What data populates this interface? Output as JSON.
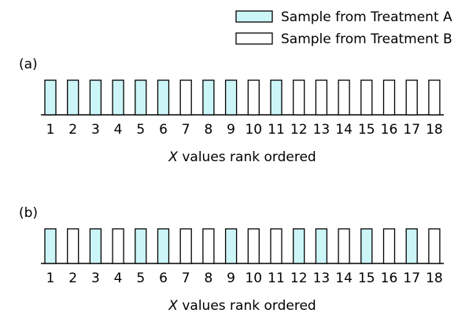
{
  "legend": [
    {
      "label": "Sample from Treatment A",
      "treatment": "A",
      "color": "#ccf5f7"
    },
    {
      "label": "Sample from Treatment B",
      "treatment": "B",
      "color": "#ffffff"
    }
  ],
  "panels": [
    {
      "label": "(a)",
      "ranks": [
        1,
        2,
        3,
        4,
        5,
        6,
        7,
        8,
        9,
        10,
        11,
        12,
        13,
        14,
        15,
        16,
        17,
        18
      ],
      "treatments": [
        "A",
        "A",
        "A",
        "A",
        "A",
        "A",
        "B",
        "A",
        "A",
        "B",
        "A",
        "B",
        "B",
        "B",
        "B",
        "B",
        "B",
        "B"
      ],
      "axis_variable": "X",
      "axis_text": "values rank ordered"
    },
    {
      "label": "(b)",
      "ranks": [
        1,
        2,
        3,
        4,
        5,
        6,
        7,
        8,
        9,
        10,
        11,
        12,
        13,
        14,
        15,
        16,
        17,
        18
      ],
      "treatments": [
        "A",
        "B",
        "A",
        "B",
        "A",
        "A",
        "B",
        "B",
        "A",
        "B",
        "B",
        "A",
        "A",
        "B",
        "A",
        "B",
        "A",
        "B"
      ],
      "axis_variable": "X",
      "axis_text": "values rank ordered"
    }
  ]
}
